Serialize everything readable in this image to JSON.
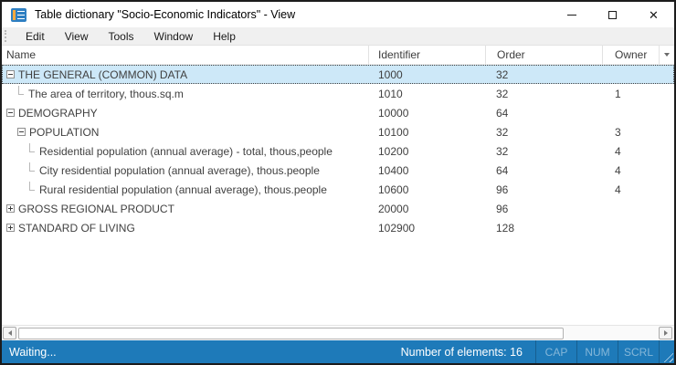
{
  "window": {
    "title": "Table dictionary \"Socio-Economic Indicators\" - View",
    "icons": {
      "app": "table-dictionary-icon",
      "minimize": "minimize-icon",
      "maximize": "maximize-icon",
      "close": "close-icon",
      "column_chooser": "chevron-down-icon",
      "scroll_left": "arrow-left-icon",
      "scroll_right": "arrow-right-icon",
      "tree_collapse": "minus-box-icon",
      "tree_expand": "plus-box-icon"
    }
  },
  "menu": {
    "items": [
      "Edit",
      "View",
      "Tools",
      "Window",
      "Help"
    ]
  },
  "table": {
    "columns": [
      "Name",
      "Identifier",
      "Order",
      "Owner"
    ],
    "rows": [
      {
        "name": "THE GENERAL (COMMON) DATA",
        "identifier": "1000",
        "order": "32",
        "owner": "",
        "level": 0,
        "expander": "minus",
        "selected": true
      },
      {
        "name": "The area of territory, thous.sq.m",
        "identifier": "1010",
        "order": "32",
        "owner": "1",
        "level": 1,
        "expander": "leaf",
        "selected": false
      },
      {
        "name": "DEMOGRAPHY",
        "identifier": "10000",
        "order": "64",
        "owner": "",
        "level": 0,
        "expander": "minus",
        "selected": false
      },
      {
        "name": "POPULATION",
        "identifier": "10100",
        "order": "32",
        "owner": "3",
        "level": 1,
        "expander": "minus",
        "selected": false
      },
      {
        "name": "Residential population (annual average) - total, thous,people",
        "identifier": "10200",
        "order": "32",
        "owner": "4",
        "level": 2,
        "expander": "leaf",
        "selected": false
      },
      {
        "name": "City residential population (annual average), thous.people",
        "identifier": "10400",
        "order": "64",
        "owner": "4",
        "level": 2,
        "expander": "leaf",
        "selected": false
      },
      {
        "name": "Rural residential population (annual average), thous.people",
        "identifier": "10600",
        "order": "96",
        "owner": "4",
        "level": 2,
        "expander": "leaf",
        "selected": false
      },
      {
        "name": "GROSS REGIONAL PRODUCT",
        "identifier": "20000",
        "order": "96",
        "owner": "",
        "level": 0,
        "expander": "plus",
        "selected": false
      },
      {
        "name": "STANDARD OF LIVING",
        "identifier": "102900",
        "order": "128",
        "owner": "",
        "level": 0,
        "expander": "plus",
        "selected": false
      }
    ]
  },
  "status_bar": {
    "message": "Waiting...",
    "elements_count_label": "Number of elements: 16",
    "indicators": [
      "CAP",
      "NUM",
      "SCRL"
    ]
  },
  "colors": {
    "status_bar_bg": "#1e7ab9",
    "selection_bg": "#cde8f8",
    "menu_bg": "#f0f0f0",
    "window_bg": "#ffffff"
  }
}
